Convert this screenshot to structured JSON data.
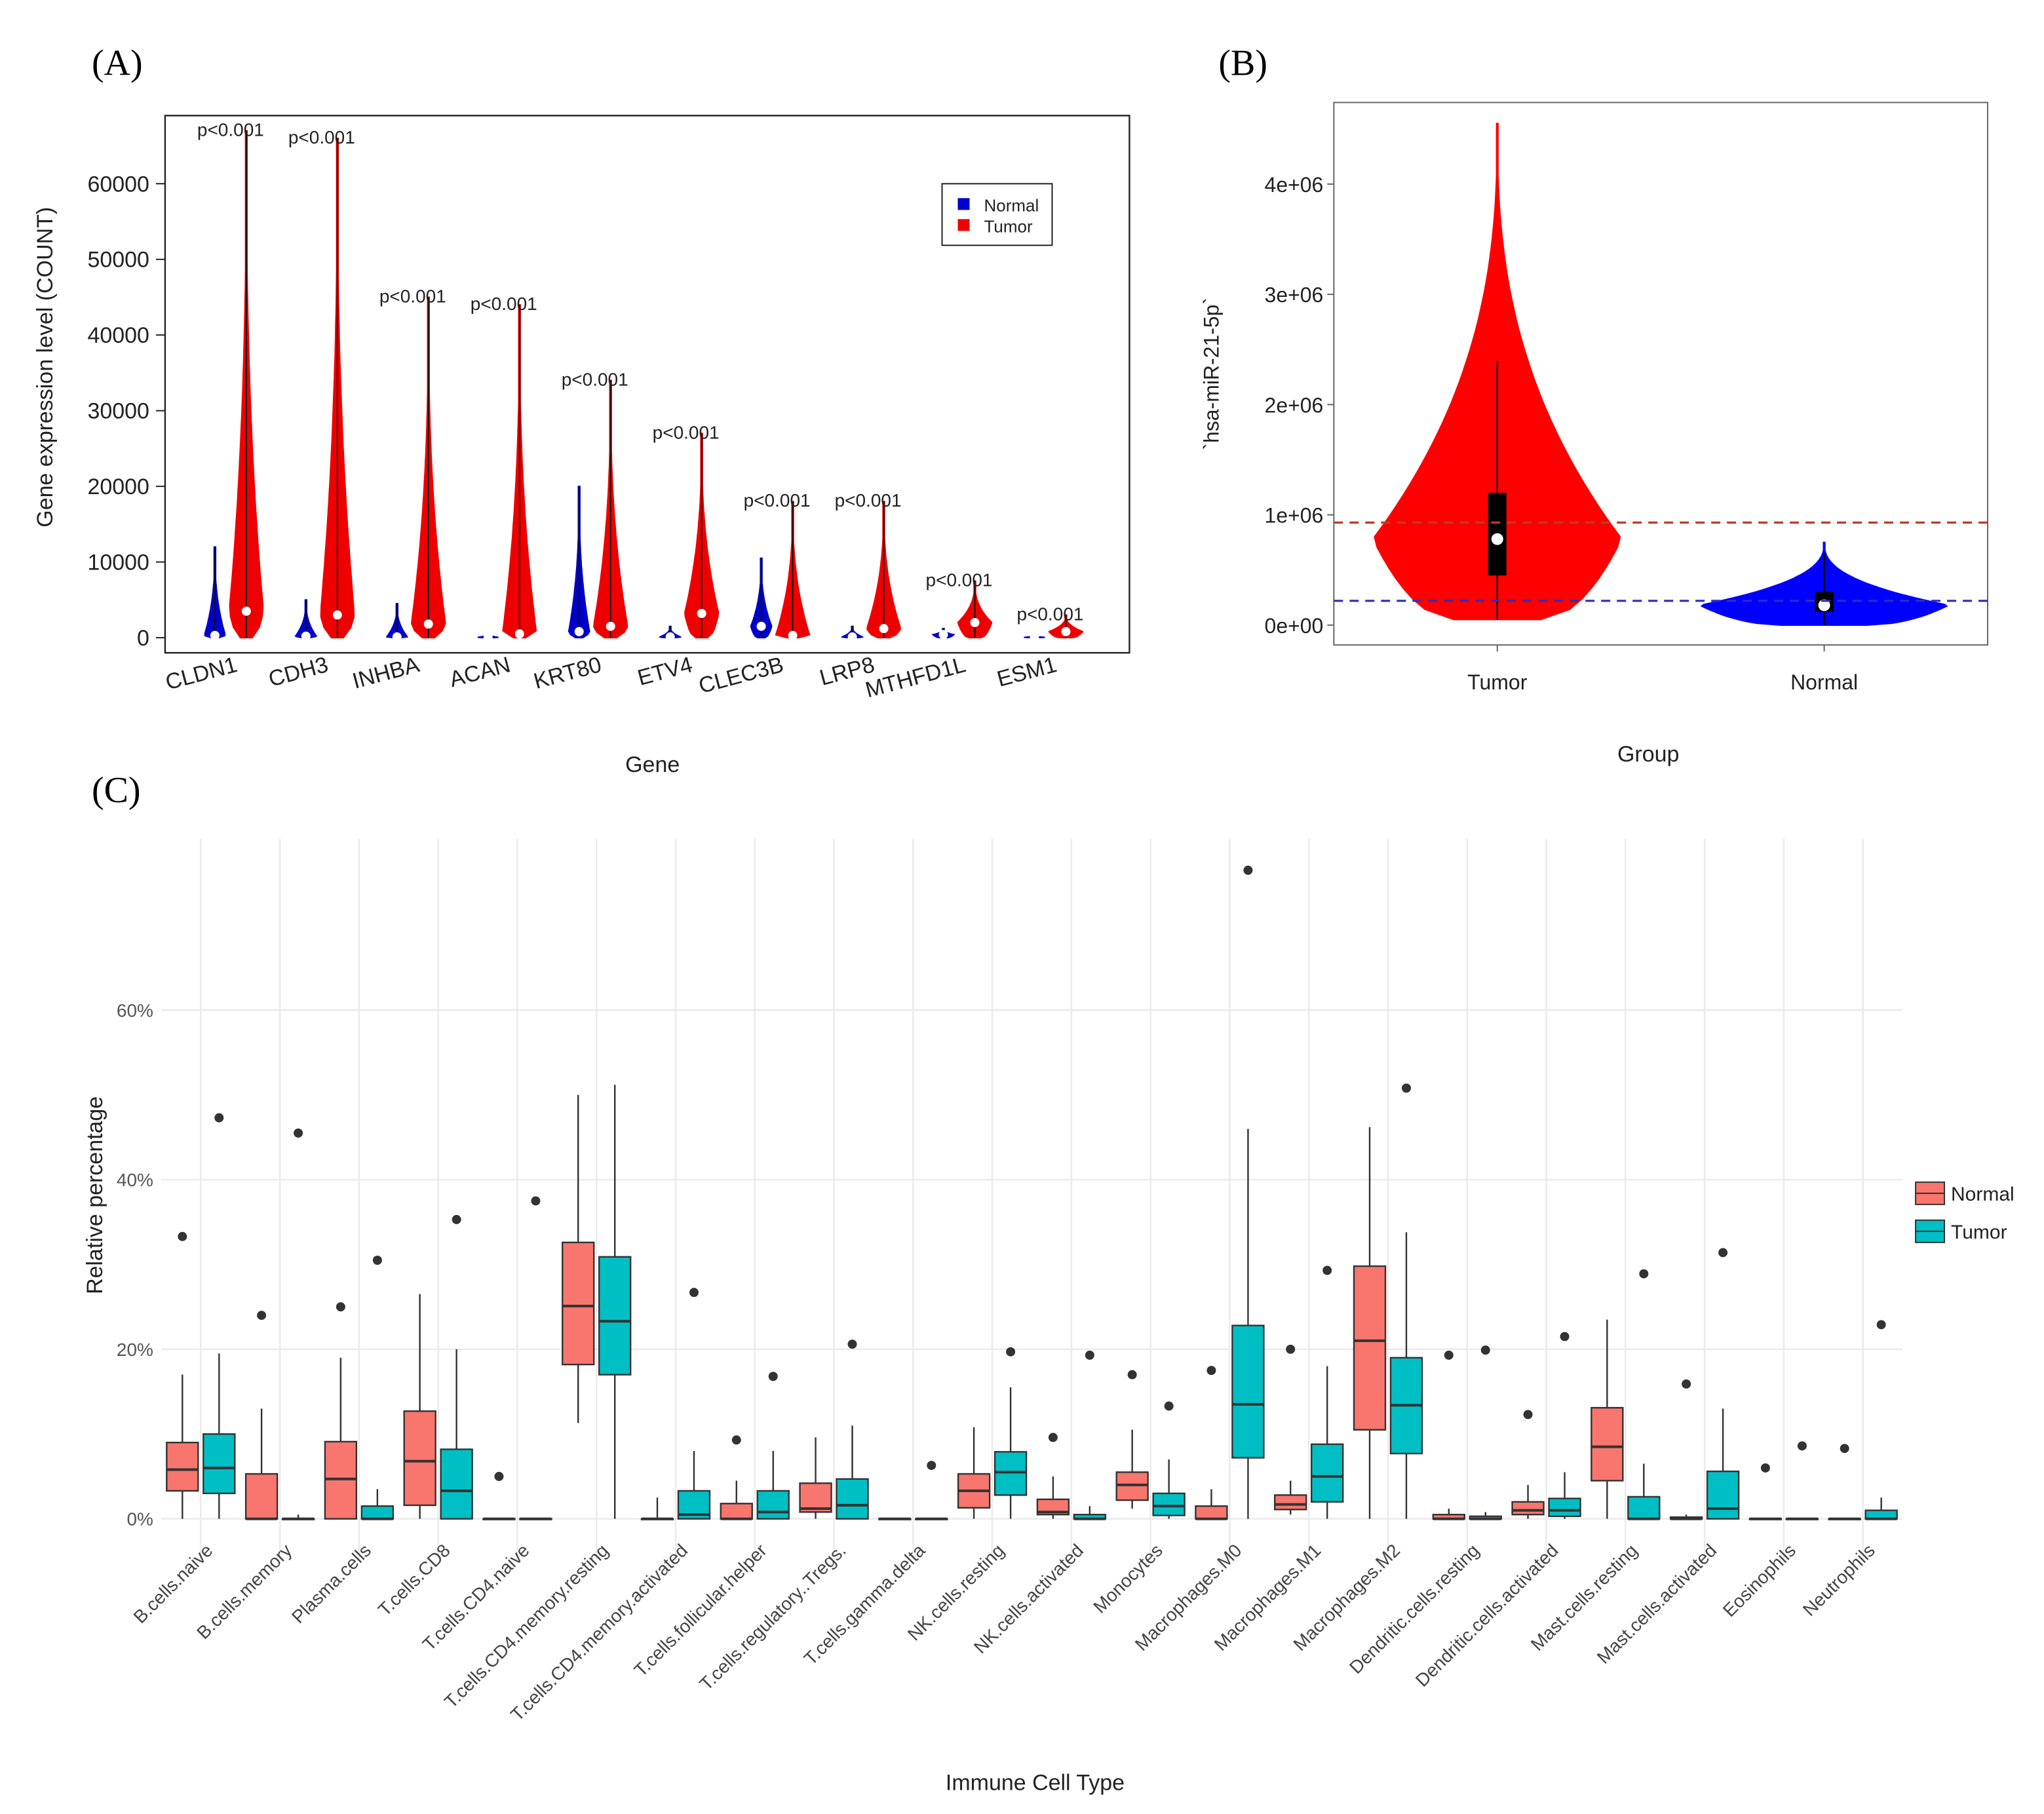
{
  "chart_data": [
    {
      "type": "violin",
      "panel_label": "(A)",
      "xlabel": "Gene",
      "ylabel": "Gene expression level (COUNT)",
      "categories": [
        "CLDN1",
        "CDH3",
        "INHBA",
        "ACAN",
        "KRT80",
        "ETV4",
        "CLEC3B",
        "LRP8",
        "MTHFD1L",
        "ESM1"
      ],
      "series": [
        {
          "name": "Normal",
          "color": "#0000cc",
          "max": [
            12000,
            5000,
            4500,
            500,
            20000,
            1500,
            10500,
            1500,
            1200,
            300
          ],
          "median": [
            300,
            200,
            100,
            50,
            800,
            100,
            1500,
            100,
            400,
            50
          ]
        },
        {
          "name": "Tumor",
          "color": "#ee0000",
          "max": [
            67000,
            66000,
            45000,
            44000,
            34000,
            27000,
            18000,
            18000,
            7500,
            3000
          ],
          "median": [
            3500,
            3000,
            1800,
            500,
            1500,
            3200,
            300,
            1200,
            2000,
            800
          ]
        }
      ],
      "annotations": [
        "p<0.001",
        "p<0.001",
        "p<0.001",
        "p<0.001",
        "p<0.001",
        "p<0.001",
        "p<0.001",
        "p<0.001",
        "p<0.001",
        "p<0.001"
      ],
      "ylim": [
        -2000,
        69000
      ],
      "yticks": [
        0,
        10000,
        20000,
        30000,
        40000,
        50000,
        60000
      ],
      "legend": "top-right"
    },
    {
      "type": "violin-box",
      "panel_label": "(B)",
      "xlabel": "Group",
      "ylabel": "`hsa-miR-21-5p`",
      "categories": [
        "Tumor",
        "Normal"
      ],
      "colors": [
        "#ff0000",
        "#0000ff"
      ],
      "min": [
        50000,
        0
      ],
      "q1": [
        450000,
        120000
      ],
      "median": [
        780000,
        180000
      ],
      "q3": [
        1200000,
        300000
      ],
      "whisker_high": [
        2400000,
        650000
      ],
      "max": [
        4550000,
        750000
      ],
      "hlines": [
        {
          "value": 930000,
          "color": "#c0392b"
        },
        {
          "value": 220000,
          "color": "#2c2cc0"
        }
      ],
      "ylim": [
        -180000,
        4740000
      ],
      "yticks": [
        {
          "value": 0,
          "label": "0e+00"
        },
        {
          "value": 1000000,
          "label": "1e+06"
        },
        {
          "value": 2000000,
          "label": "2e+06"
        },
        {
          "value": 3000000,
          "label": "3e+06"
        },
        {
          "value": 4000000,
          "label": "4e+06"
        }
      ]
    },
    {
      "type": "box",
      "panel_label": "(C)",
      "xlabel": "Immune Cell Type",
      "ylabel": "Relative percentage",
      "categories": [
        "B.cells.naive",
        "B.cells.memory",
        "Plasma.cells",
        "T.cells.CD8",
        "T.cells.CD4.naive",
        "T.cells.CD4.memory.resting",
        "T.cells.CD4.memory.activated",
        "T.cells.follicular.helper",
        "T.cells.regulatory..Tregs.",
        "T.cells.gamma.delta",
        "NK.cells.resting",
        "NK.cells.activated",
        "Monocytes",
        "Macrophages.M0",
        "Macrophages.M1",
        "Macrophages.M2",
        "Dendritic.cells.resting",
        "Dendritic.cells.activated",
        "Mast.cells.resting",
        "Mast.cells.activated",
        "Eosinophils",
        "Neutrophils"
      ],
      "series": [
        {
          "name": "Normal",
          "color": "#f8766d",
          "min": [
            0,
            0,
            0,
            0,
            0,
            11.3,
            0,
            0,
            0,
            0,
            0,
            0,
            1.2,
            0,
            0.5,
            0,
            0,
            0,
            0,
            0,
            0,
            0
          ],
          "q1": [
            3.3,
            0,
            0,
            1.6,
            0,
            18.2,
            0,
            0,
            0.8,
            0,
            1.3,
            0.5,
            2.2,
            0,
            1.1,
            10.5,
            0,
            0.5,
            4.5,
            0,
            0,
            0
          ],
          "median": [
            5.8,
            0,
            4.7,
            6.8,
            0,
            25.1,
            0,
            0,
            1.2,
            0,
            3.3,
            0.8,
            4,
            0,
            1.7,
            21,
            0,
            1,
            8.5,
            0,
            0,
            0
          ],
          "q3": [
            9,
            5.3,
            9.1,
            12.7,
            0,
            32.6,
            0,
            1.8,
            4.2,
            0,
            5.3,
            2.3,
            5.5,
            1.5,
            2.8,
            29.8,
            0.5,
            2,
            13.1,
            0.2,
            0,
            0
          ],
          "max": [
            17,
            13,
            19,
            26.5,
            0,
            50,
            2.5,
            4.5,
            9.6,
            0,
            10.8,
            5,
            10.5,
            3.5,
            4.5,
            46.2,
            1.2,
            4,
            23.5,
            0.5,
            0,
            0
          ],
          "outlier_max": [
            33.3,
            24,
            25,
            null,
            5,
            null,
            null,
            9.3,
            null,
            null,
            null,
            9.6,
            17,
            17.5,
            20,
            null,
            19.3,
            12.3,
            null,
            15.9,
            6,
            8.3
          ]
        },
        {
          "name": "Tumor",
          "color": "#00bfc4",
          "min": [
            0,
            0,
            0,
            0,
            0,
            0,
            0,
            0,
            0,
            0,
            0,
            0,
            0,
            0,
            0,
            0,
            0,
            0,
            0,
            0,
            0,
            0
          ],
          "q1": [
            3,
            0,
            0,
            0,
            0,
            17,
            0,
            0,
            0,
            0,
            2.8,
            0,
            0.4,
            7.2,
            2,
            7.7,
            0,
            0.3,
            0,
            0,
            0,
            0
          ],
          "median": [
            6,
            0,
            0,
            3.3,
            0,
            23.3,
            0.5,
            0.8,
            1.6,
            0,
            5.5,
            0,
            1.5,
            13.5,
            5,
            13.4,
            0,
            1,
            0,
            1.2,
            0,
            0
          ],
          "q3": [
            10,
            0,
            1.5,
            8.2,
            0,
            30.9,
            3.3,
            3.3,
            4.7,
            0,
            7.9,
            0.5,
            3,
            22.8,
            8.8,
            19,
            0.3,
            2.4,
            2.6,
            5.6,
            0,
            1
          ],
          "max": [
            19.5,
            0.5,
            3.5,
            20,
            0,
            51.2,
            8,
            8,
            11,
            0,
            15.5,
            1.5,
            7,
            46,
            18,
            33.8,
            0.8,
            5.5,
            6.5,
            13,
            0.1,
            2.5
          ],
          "outlier_max": [
            47.3,
            45.5,
            30.5,
            35.3,
            37.5,
            null,
            26.7,
            16.8,
            20.6,
            6.3,
            19.7,
            19.3,
            13.3,
            76.5,
            29.3,
            50.8,
            19.9,
            21.5,
            28.9,
            31.4,
            8.6,
            22.9
          ]
        }
      ],
      "ylim": [
        -4.8,
        80.2
      ],
      "yticks": [
        {
          "value": 0,
          "label": "0%"
        },
        {
          "value": 20,
          "label": "20%"
        },
        {
          "value": 40,
          "label": "40%"
        },
        {
          "value": 60,
          "label": "60%"
        }
      ],
      "grid": true,
      "legend": "right"
    }
  ]
}
